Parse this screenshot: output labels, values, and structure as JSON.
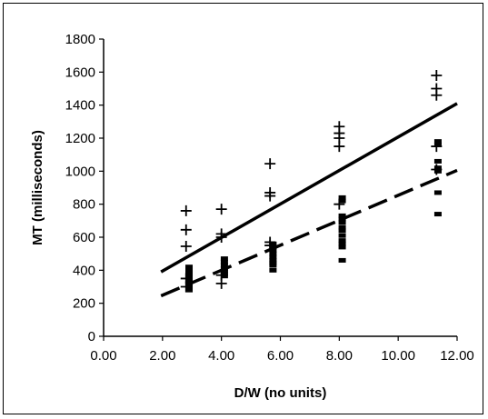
{
  "chart_data": {
    "type": "scatter",
    "title": "",
    "xlabel": "D/W (no units)",
    "ylabel": "MT (milliseconds)",
    "xlim": [
      0,
      12
    ],
    "ylim": [
      0,
      1800
    ],
    "x_ticks": [
      "0.00",
      "2.00",
      "4.00",
      "6.00",
      "8.00",
      "10.00",
      "12.00"
    ],
    "y_ticks": [
      "0",
      "200",
      "400",
      "600",
      "800",
      "1000",
      "1200",
      "1400",
      "1600",
      "1800"
    ],
    "grid": false,
    "legend": "none",
    "series": [
      {
        "marker": "plus",
        "points": [
          [
            2.8,
            760
          ],
          [
            2.8,
            645
          ],
          [
            2.8,
            545
          ],
          [
            2.8,
            350
          ],
          [
            2.8,
            300
          ],
          [
            4.0,
            770
          ],
          [
            4.0,
            620
          ],
          [
            4.0,
            600
          ],
          [
            4.0,
            370
          ],
          [
            4.0,
            320
          ],
          [
            5.65,
            1045
          ],
          [
            5.65,
            870
          ],
          [
            5.65,
            850
          ],
          [
            5.65,
            570
          ],
          [
            5.65,
            550
          ],
          [
            8.0,
            1270
          ],
          [
            8.0,
            1230
          ],
          [
            8.0,
            1200
          ],
          [
            8.0,
            1150
          ],
          [
            8.0,
            800
          ],
          [
            11.3,
            1580
          ],
          [
            11.3,
            1500
          ],
          [
            11.3,
            1460
          ],
          [
            11.3,
            1150
          ],
          [
            11.3,
            1010
          ]
        ]
      },
      {
        "marker": "square",
        "points": [
          [
            2.9,
            420
          ],
          [
            2.9,
            400
          ],
          [
            2.9,
            380
          ],
          [
            2.9,
            360
          ],
          [
            2.9,
            340
          ],
          [
            2.9,
            320
          ],
          [
            2.9,
            300
          ],
          [
            2.9,
            280
          ],
          [
            4.1,
            470
          ],
          [
            4.1,
            450
          ],
          [
            4.1,
            430
          ],
          [
            4.1,
            410
          ],
          [
            4.1,
            395
          ],
          [
            4.1,
            380
          ],
          [
            4.1,
            365
          ],
          [
            5.75,
            560
          ],
          [
            5.75,
            540
          ],
          [
            5.75,
            520
          ],
          [
            5.75,
            500
          ],
          [
            5.75,
            480
          ],
          [
            5.75,
            460
          ],
          [
            5.75,
            445
          ],
          [
            5.75,
            430
          ],
          [
            5.75,
            400
          ],
          [
            8.1,
            840
          ],
          [
            8.1,
            820
          ],
          [
            8.1,
            730
          ],
          [
            8.1,
            710
          ],
          [
            8.1,
            690
          ],
          [
            8.1,
            660
          ],
          [
            8.1,
            640
          ],
          [
            8.1,
            610
          ],
          [
            8.1,
            580
          ],
          [
            8.1,
            560
          ],
          [
            8.1,
            540
          ],
          [
            8.1,
            460
          ],
          [
            11.35,
            1180
          ],
          [
            11.35,
            1160
          ],
          [
            11.35,
            1060
          ],
          [
            11.35,
            1020
          ],
          [
            11.35,
            1000
          ],
          [
            11.35,
            870
          ],
          [
            11.35,
            740
          ]
        ]
      }
    ],
    "trendlines": [
      {
        "style": "solid",
        "points": [
          [
            1.95,
            390
          ],
          [
            12.0,
            1410
          ]
        ]
      },
      {
        "style": "dashed",
        "points": [
          [
            1.95,
            245
          ],
          [
            12.0,
            1005
          ]
        ]
      }
    ]
  }
}
